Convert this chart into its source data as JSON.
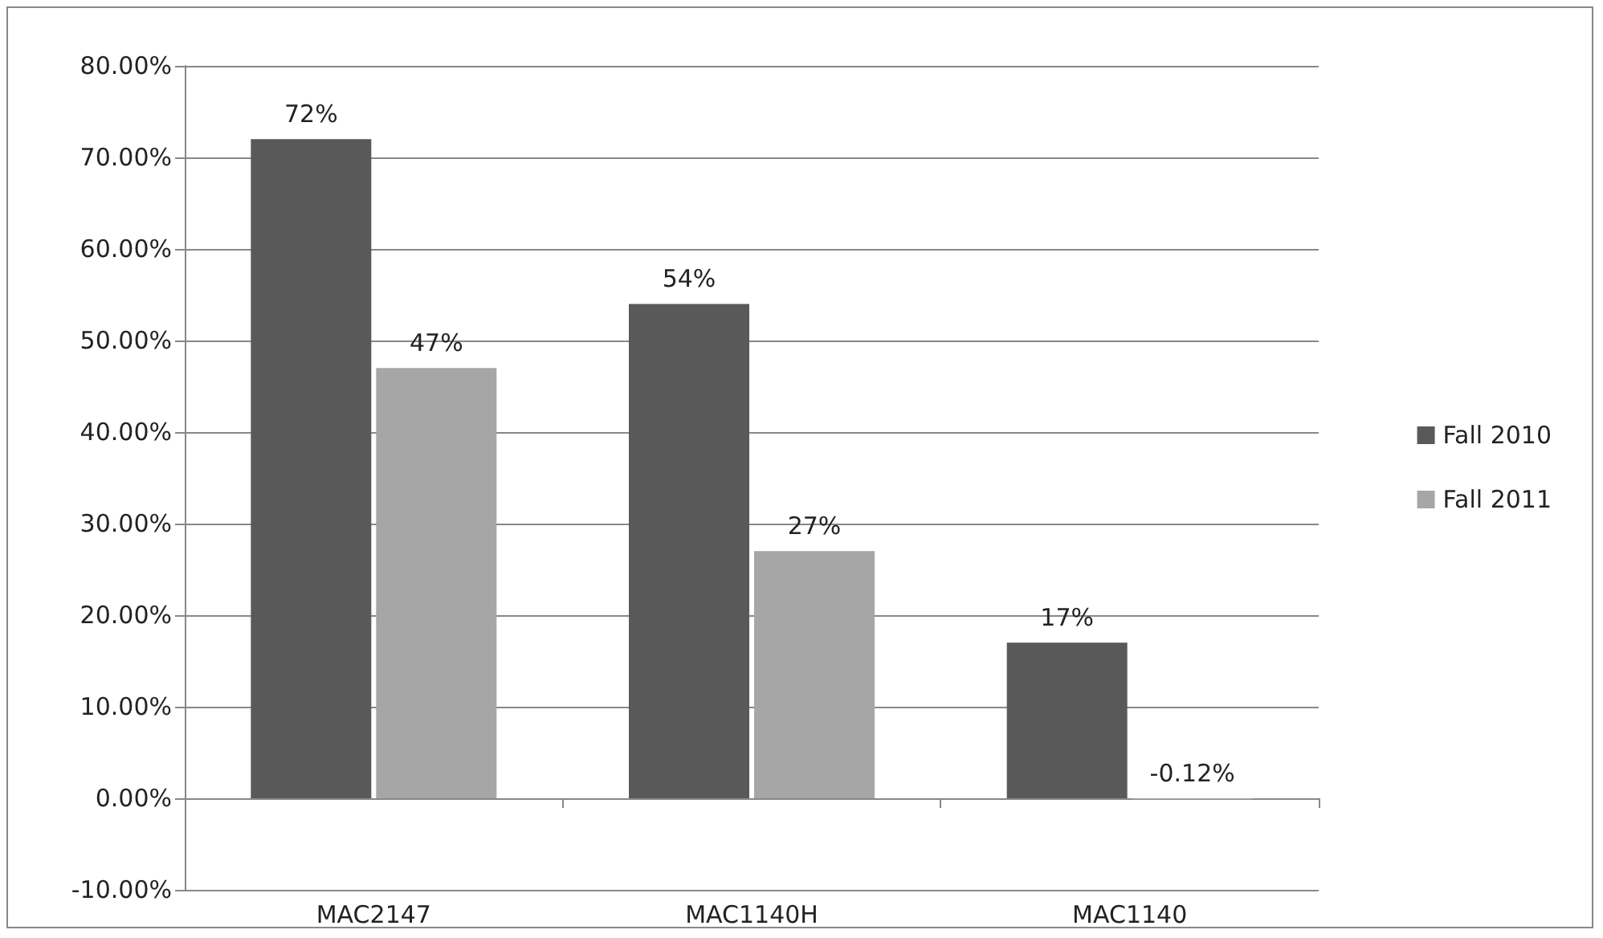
{
  "chart_data": {
    "type": "bar",
    "categories": [
      "MAC2147",
      "MAC1140H",
      "MAC1140"
    ],
    "series": [
      {
        "name": "Fall 2010",
        "color": "#595959",
        "values": [
          72,
          54,
          17
        ],
        "value_labels": [
          "72%",
          "54%",
          "17%"
        ]
      },
      {
        "name": "Fall 2011",
        "color": "#a6a6a6",
        "values": [
          47,
          27,
          -0.12
        ],
        "value_labels": [
          "47%",
          "27%",
          "-0.12%"
        ]
      }
    ],
    "ylim": [
      -10,
      80
    ],
    "yticks": [
      {
        "value": -10,
        "label": "-10.00%"
      },
      {
        "value": 0,
        "label": "0.00%"
      },
      {
        "value": 10,
        "label": "10.00%"
      },
      {
        "value": 20,
        "label": "20.00%"
      },
      {
        "value": 30,
        "label": "30.00%"
      },
      {
        "value": 40,
        "label": "40.00%"
      },
      {
        "value": 50,
        "label": "50.00%"
      },
      {
        "value": 60,
        "label": "60.00%"
      },
      {
        "value": 70,
        "label": "70.00%"
      },
      {
        "value": 80,
        "label": "80.00%"
      }
    ],
    "grid": "y",
    "legend": "right"
  }
}
